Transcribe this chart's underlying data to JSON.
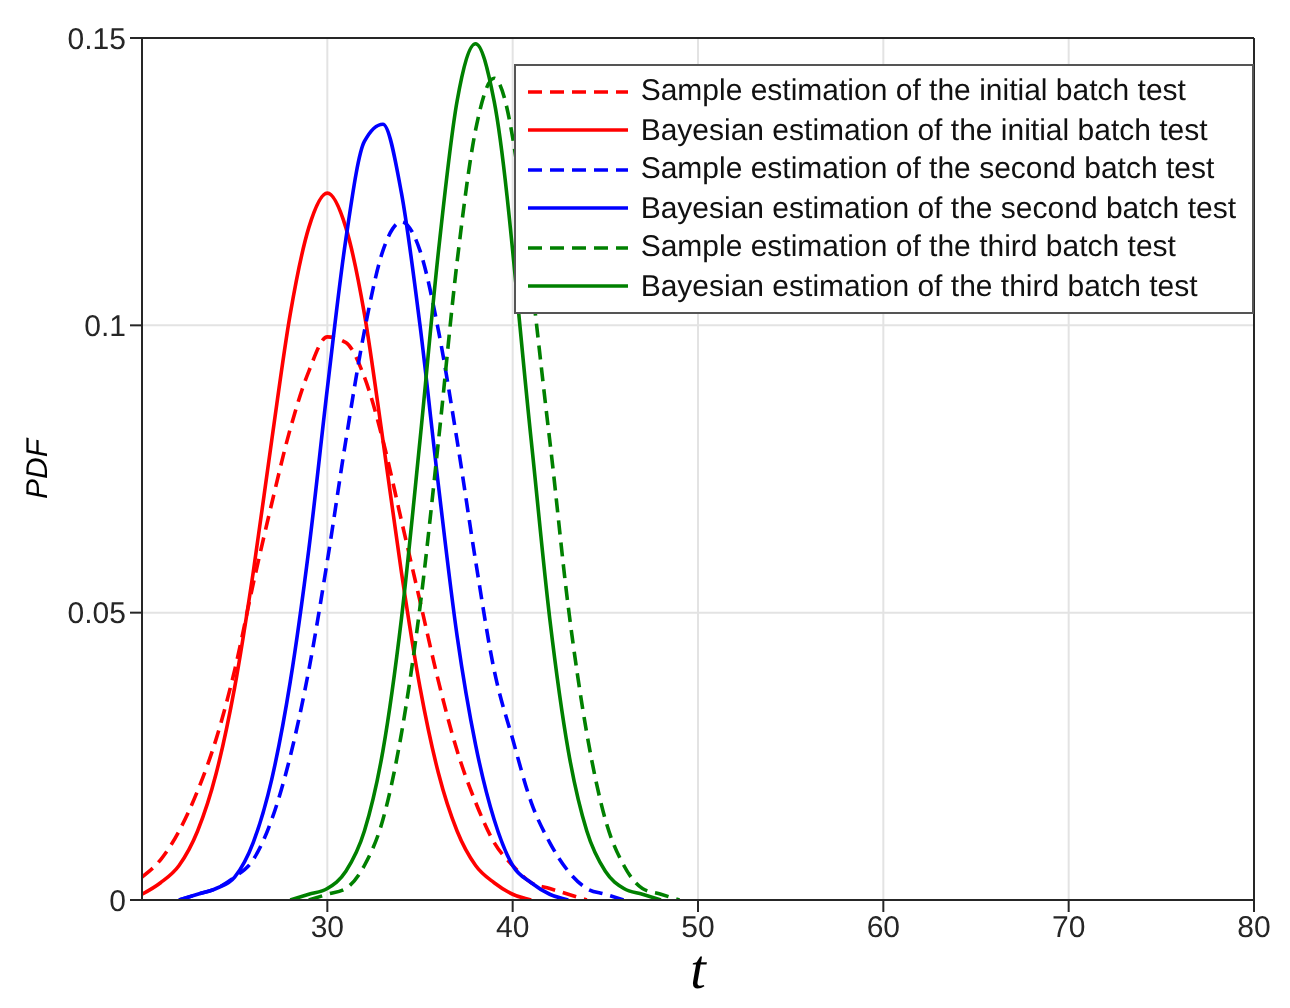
{
  "chart_data": {
    "type": "line",
    "xlabel": "t",
    "ylabel": "PDF",
    "x": [
      20,
      21,
      22,
      23,
      24,
      25,
      26,
      27,
      28,
      29,
      30,
      31,
      32,
      33,
      34,
      35,
      36,
      37,
      38,
      39,
      40,
      41,
      42,
      43,
      44,
      45,
      46,
      47,
      48,
      49
    ],
    "xlim": [
      20,
      80
    ],
    "xticks": [
      30,
      40,
      50,
      60,
      70,
      80
    ],
    "ylim": [
      0,
      0.15
    ],
    "yticks": [
      0,
      0.05,
      0.1,
      0.15
    ],
    "grid": true,
    "legend": "top right",
    "marker": "none",
    "series": [
      {
        "name": "Sample estimation of the initial batch test",
        "color": "#ff0000",
        "line_style": "dashed",
        "values": [
          0.004,
          0.007,
          0.012,
          0.019,
          0.028,
          0.04,
          0.055,
          0.069,
          0.082,
          0.092,
          0.098,
          0.097,
          0.091,
          0.08,
          0.066,
          0.052,
          0.038,
          0.026,
          0.017,
          0.01,
          0.006,
          0.003,
          0.002,
          0.001,
          0,
          null,
          null,
          null,
          null,
          null
        ]
      },
      {
        "name": "Bayesian estimation of the initial batch test",
        "color": "#ff0000",
        "line_style": "solid",
        "values": [
          0.001,
          0.003,
          0.006,
          0.012,
          0.022,
          0.037,
          0.057,
          0.08,
          0.102,
          0.117,
          0.123,
          0.117,
          0.102,
          0.08,
          0.057,
          0.037,
          0.022,
          0.012,
          0.006,
          0.003,
          0.001,
          0,
          null,
          null,
          null,
          null,
          null,
          null,
          null,
          null
        ]
      },
      {
        "name": "Sample estimation of the second batch test",
        "color": "#0000ff",
        "line_style": "dashed",
        "values": [
          null,
          null,
          0,
          0.001,
          0.002,
          0.004,
          0.007,
          0.014,
          0.025,
          0.04,
          0.059,
          0.08,
          0.099,
          0.113,
          0.118,
          0.113,
          0.099,
          0.08,
          0.059,
          0.04,
          0.028,
          0.017,
          0.01,
          0.005,
          0.002,
          0.001,
          0,
          null,
          null,
          null
        ]
      },
      {
        "name": "Bayesian estimation of the second batch test",
        "color": "#0000ff",
        "line_style": "solid",
        "values": [
          null,
          null,
          0,
          0.001,
          0.002,
          0.004,
          0.01,
          0.021,
          0.038,
          0.061,
          0.089,
          0.115,
          0.132,
          0.135,
          0.123,
          0.1,
          0.072,
          0.046,
          0.027,
          0.014,
          0.006,
          0.003,
          0.001,
          0,
          null,
          null,
          null,
          null,
          null,
          null
        ]
      },
      {
        "name": "Sample estimation of the third batch test",
        "color": "#008000",
        "line_style": "dashed",
        "values": [
          null,
          null,
          null,
          null,
          null,
          null,
          null,
          null,
          null,
          0,
          0.001,
          0.002,
          0.006,
          0.014,
          0.029,
          0.051,
          0.08,
          0.111,
          0.134,
          0.143,
          null,
          null,
          0.08,
          0.051,
          0.029,
          0.014,
          0.006,
          0.002,
          0.001,
          0
        ]
      },
      {
        "name": "Bayesian estimation of the third batch test",
        "color": "#008000",
        "line_style": "solid",
        "values": [
          null,
          null,
          null,
          null,
          null,
          null,
          null,
          null,
          0,
          0.001,
          0.002,
          0.005,
          0.012,
          0.026,
          0.049,
          0.08,
          0.113,
          0.139,
          0.149,
          0.139,
          null,
          0.08,
          0.049,
          0.026,
          0.012,
          0.005,
          0.002,
          0.001,
          0,
          null
        ]
      }
    ]
  }
}
